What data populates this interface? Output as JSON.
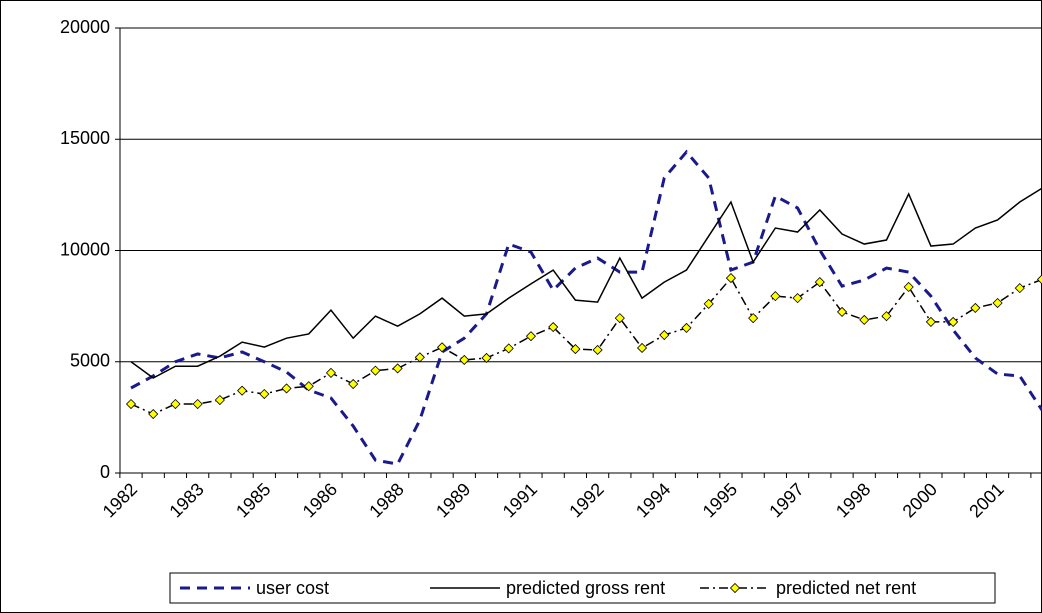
{
  "chart_data": {
    "type": "line",
    "categories": [
      "1982",
      null,
      null,
      "1983",
      null,
      null,
      "1985",
      null,
      null,
      "1986",
      null,
      null,
      "1988",
      null,
      null,
      "1989",
      null,
      null,
      "1991",
      null,
      null,
      "1992",
      null,
      null,
      "1994",
      null,
      null,
      "1995",
      null,
      null,
      "1997",
      null,
      null,
      "1998",
      null,
      null,
      "2000",
      null,
      null,
      "2001",
      null,
      null
    ],
    "series": [
      {
        "name": "user cost",
        "color": "#1a1a8c",
        "line_style": "dashed",
        "marker": "none",
        "values": [
          3820,
          4360,
          5000,
          5350,
          5170,
          5440,
          5000,
          4540,
          3730,
          3370,
          2110,
          580,
          400,
          2380,
          5440,
          6060,
          7150,
          10290,
          9930,
          8220,
          9210,
          9660,
          9030,
          9030,
          13260,
          14430,
          13260,
          9120,
          9480,
          12450,
          11910,
          10020,
          8400,
          8670,
          9210,
          9030,
          7950,
          6430,
          5170,
          4450,
          4360,
          2830
        ]
      },
      {
        "name": "predicted gross rent",
        "color": "#000000",
        "line_style": "solid",
        "marker": "none",
        "values": [
          5000,
          4270,
          4800,
          4800,
          5250,
          5880,
          5660,
          6060,
          6250,
          7320,
          6060,
          7050,
          6600,
          7150,
          7860,
          7050,
          7150,
          7860,
          8500,
          9120,
          7770,
          7680,
          9660,
          7860,
          8580,
          9120,
          10650,
          12180,
          9480,
          11010,
          10830,
          11820,
          10740,
          10290,
          10470,
          12540,
          10200,
          10290,
          11010,
          11370,
          12180,
          12800
        ]
      },
      {
        "name": "predicted net rent",
        "color": "#000000",
        "line_style": "dashdot",
        "marker": "diamond",
        "marker_color": "#ffff00",
        "values": [
          3100,
          2650,
          3100,
          3100,
          3280,
          3700,
          3550,
          3800,
          3900,
          4500,
          4000,
          4600,
          4700,
          5200,
          5650,
          5080,
          5170,
          5600,
          6150,
          6560,
          5570,
          5530,
          6960,
          5620,
          6200,
          6520,
          7600,
          8760,
          6960,
          7950,
          7860,
          8580,
          7240,
          6880,
          7050,
          8360,
          6790,
          6790,
          7420,
          7640,
          8310,
          8700
        ]
      }
    ],
    "ylim": [
      0,
      20000
    ],
    "yticks": [
      0,
      5000,
      10000,
      15000,
      20000
    ],
    "grid": true,
    "legend": "bottom"
  }
}
